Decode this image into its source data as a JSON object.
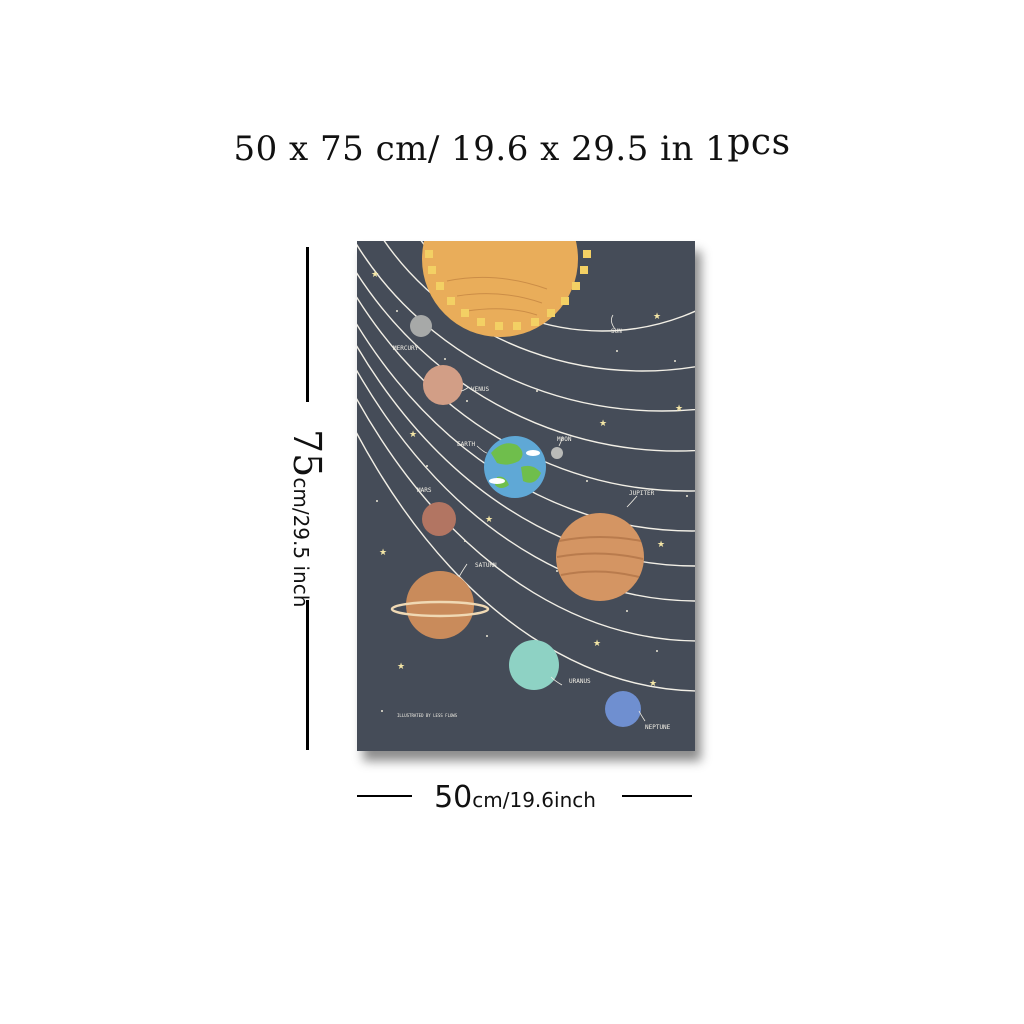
{
  "header": {
    "size_text": "50 x 75 cm/ 19.6 x 29.5 in",
    "qty_number": "1",
    "qty_unit": "pcs"
  },
  "height_dimension": {
    "value": "75",
    "unit": "cm/29.5 inch"
  },
  "width_dimension": {
    "value": "50",
    "unit": "cm/19.6inch"
  },
  "poster": {
    "background_color": "#454c58",
    "labels": {
      "sun": "SUN",
      "mercury": "MERCURY",
      "venus": "VENUS",
      "earth": "EARTH",
      "moon": "MOON",
      "mars": "MARS",
      "jupiter": "JUPITER",
      "saturn": "SATURN",
      "uranus": "URANUS",
      "neptune": "NEPTUNE",
      "credit": "ILLUSTRATED BY LESS FLOWS"
    },
    "colors": {
      "sun": "#e9ad5a",
      "sun_rays": "#f3d064",
      "mercury": "#a7a9a8",
      "venus": "#d29e86",
      "earth_ocean": "#5fa8d6",
      "earth_land": "#6fbe4c",
      "moon": "#b9bab8",
      "mars": "#b27562",
      "jupiter": "#d49563",
      "saturn": "#c98b5b",
      "uranus": "#8ed2c4",
      "neptune": "#6f8fd0",
      "stars": "#f4e6a6"
    }
  }
}
